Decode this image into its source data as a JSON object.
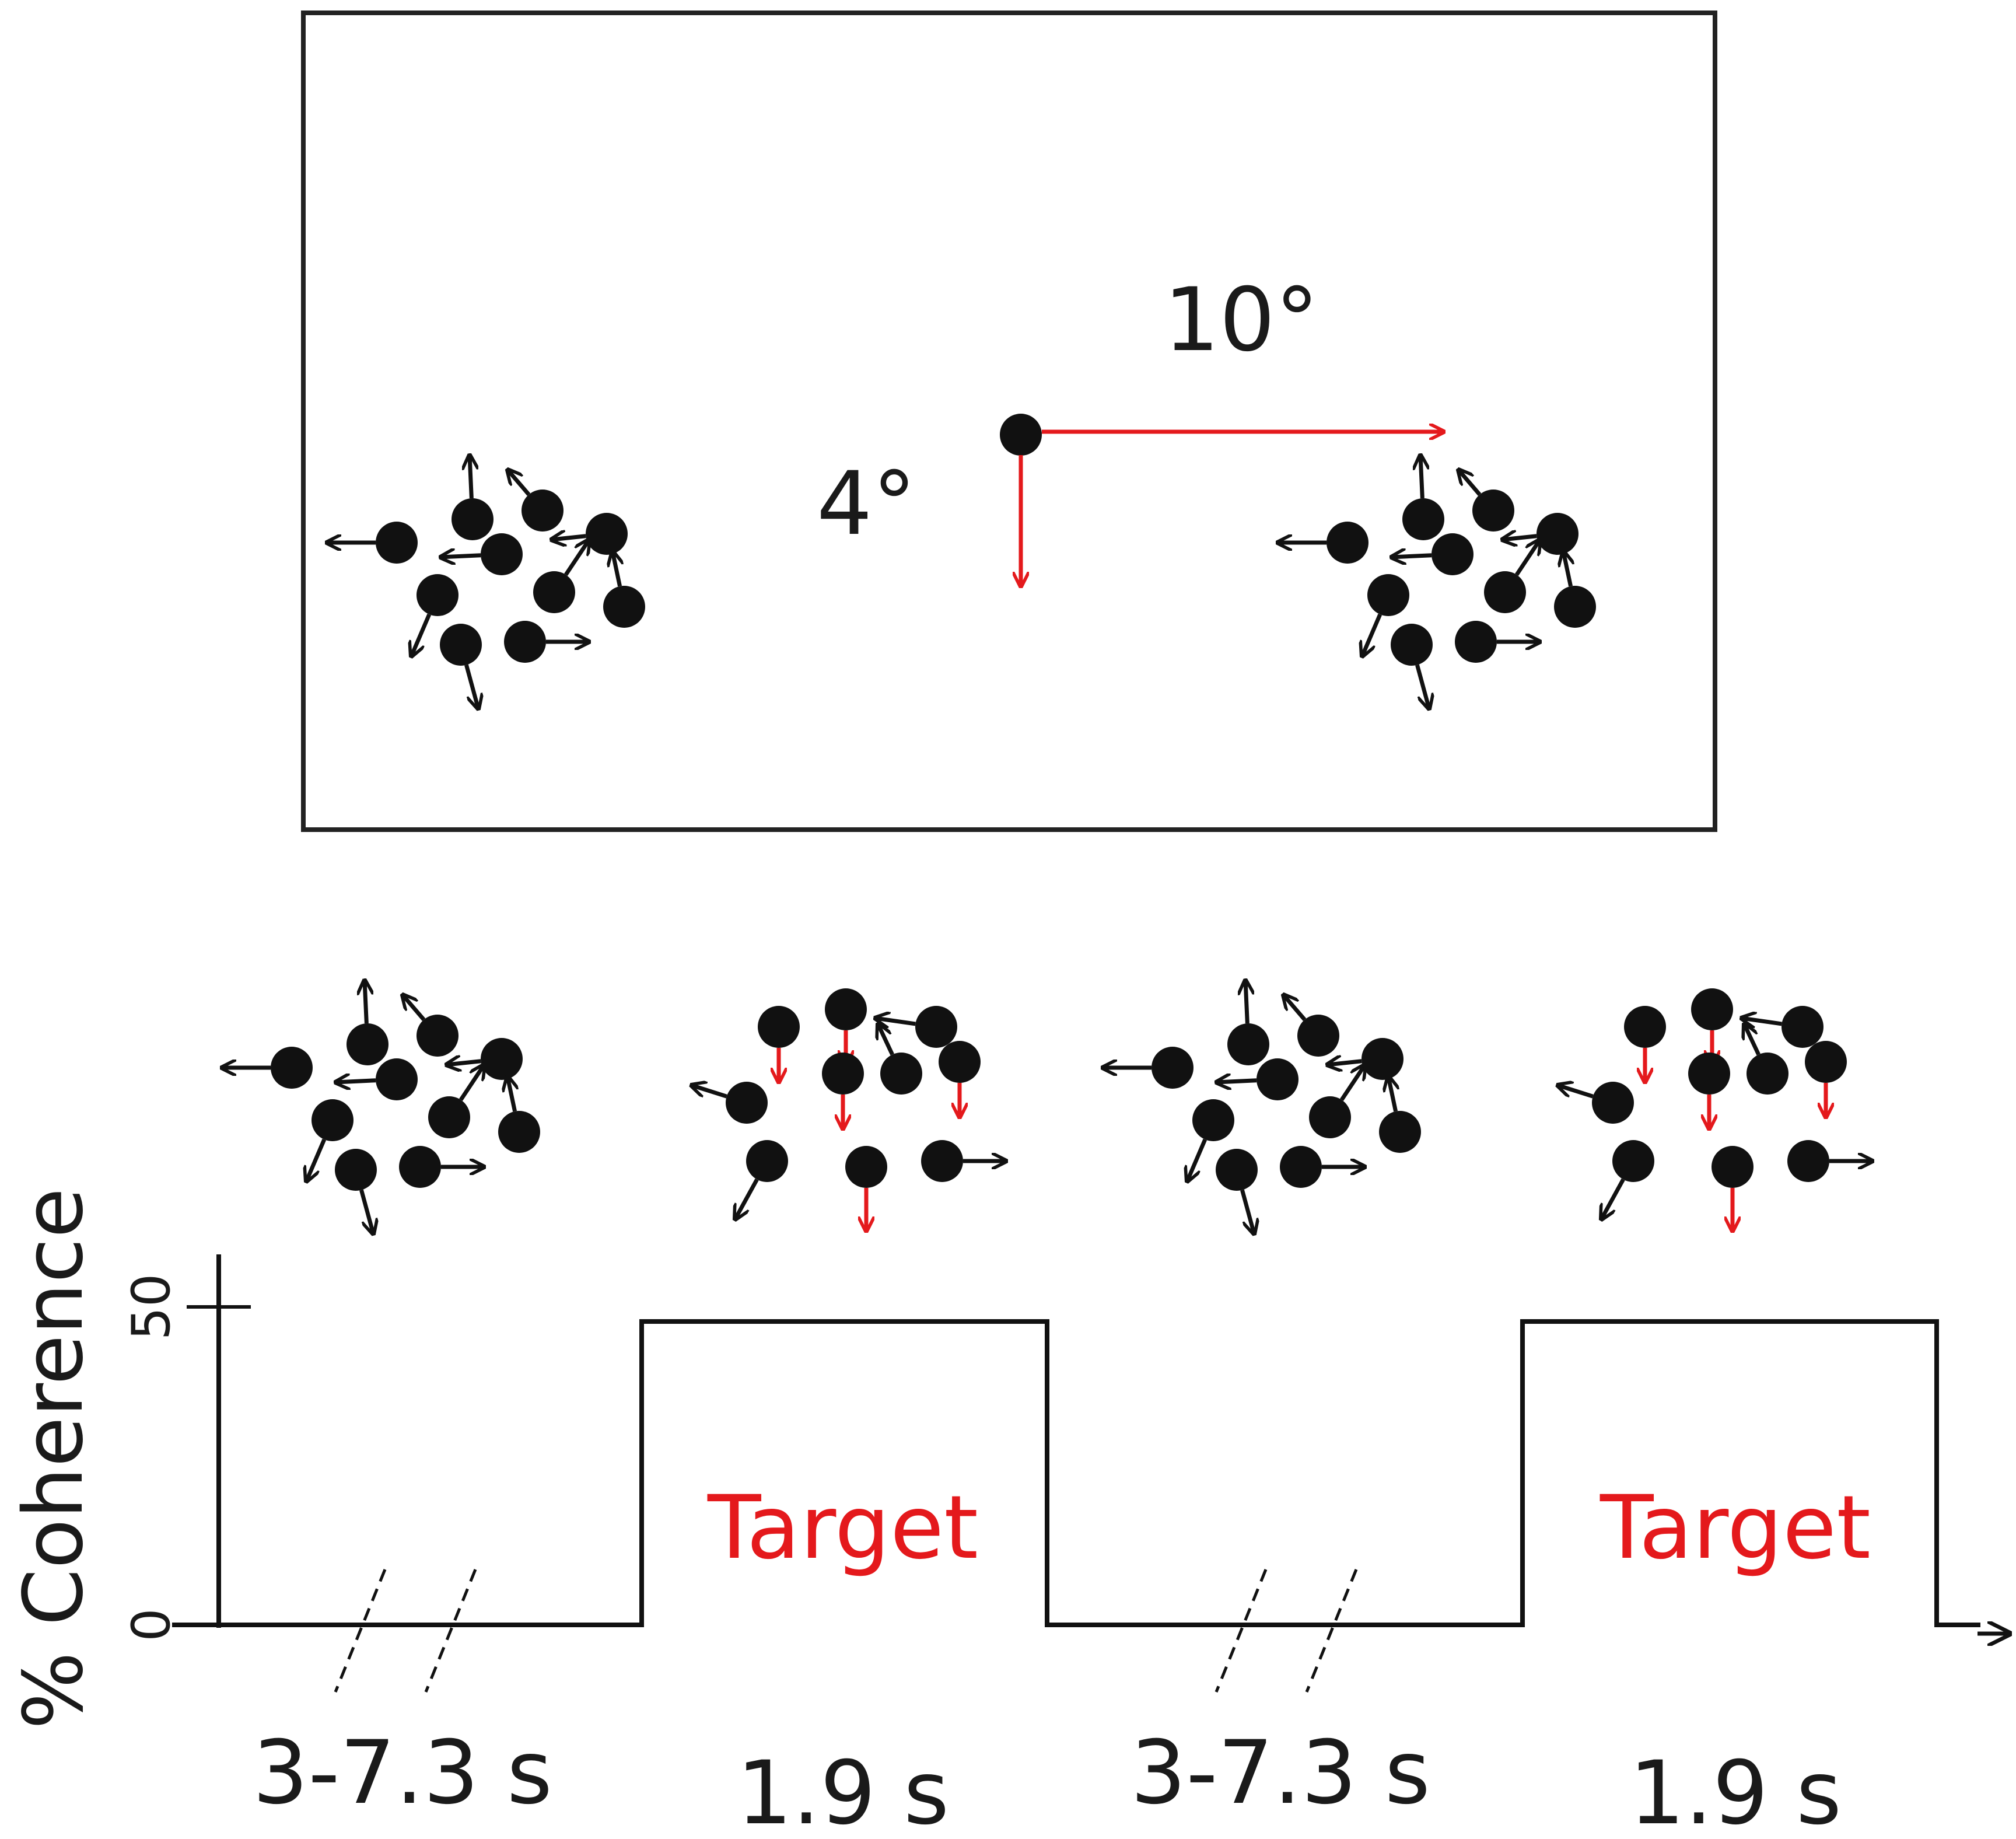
{
  "colors": {
    "ink": "#111111",
    "accent": "#e4191c"
  },
  "display": {
    "eccentricity_label": "10°",
    "offset_label": "4°"
  },
  "timeline": {
    "y_axis_label": "% Coherence",
    "y_ticks": [
      "0",
      "50"
    ],
    "coherence_levels": [
      0,
      50
    ],
    "phases": [
      {
        "kind": "baseline",
        "coherence": 0,
        "duration_label": "3-7.3 s",
        "label": ""
      },
      {
        "kind": "target",
        "coherence": 50,
        "duration_label": "1.9 s",
        "label": "Target"
      },
      {
        "kind": "baseline",
        "coherence": 0,
        "duration_label": "3-7.3 s",
        "label": ""
      },
      {
        "kind": "target",
        "coherence": 50,
        "duration_label": "1.9 s",
        "label": "Target"
      }
    ]
  }
}
